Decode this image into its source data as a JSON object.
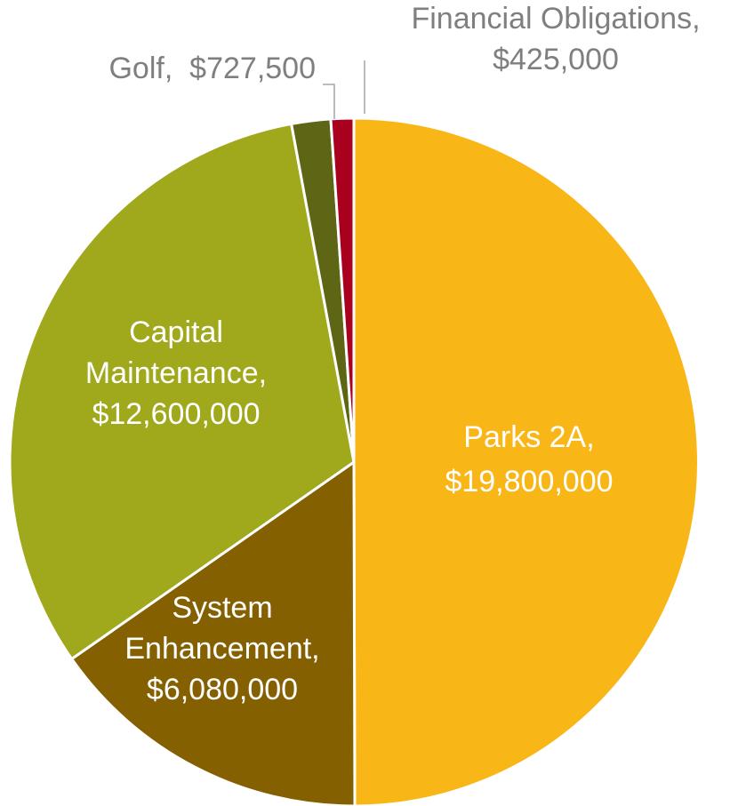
{
  "chart_data": {
    "type": "pie",
    "categories": [
      "Parks 2A",
      "System Enhancement",
      "Capital Maintenance",
      "Golf",
      "Financial Obligations"
    ],
    "values": [
      19800000,
      6080000,
      12600000,
      727500,
      425000
    ],
    "colors": [
      "#F9B617",
      "#846000",
      "#A0A81C",
      "#5E6514",
      "#A8001E"
    ],
    "labels": [
      {
        "lines": [
          "Parks 2A,",
          "$19,800,000"
        ]
      },
      {
        "lines": [
          "System",
          "Enhancement,",
          "$6,080,000"
        ]
      },
      {
        "lines": [
          "Capital",
          "Maintenance,",
          "$12,600,000"
        ]
      },
      {
        "lines": [
          "Golf,  $727,500"
        ]
      },
      {
        "lines": [
          "Financial Obligations,",
          "$425,000"
        ]
      }
    ],
    "label_colors": {
      "inside": "#ffffff",
      "outside": "#7f7f7f"
    }
  }
}
